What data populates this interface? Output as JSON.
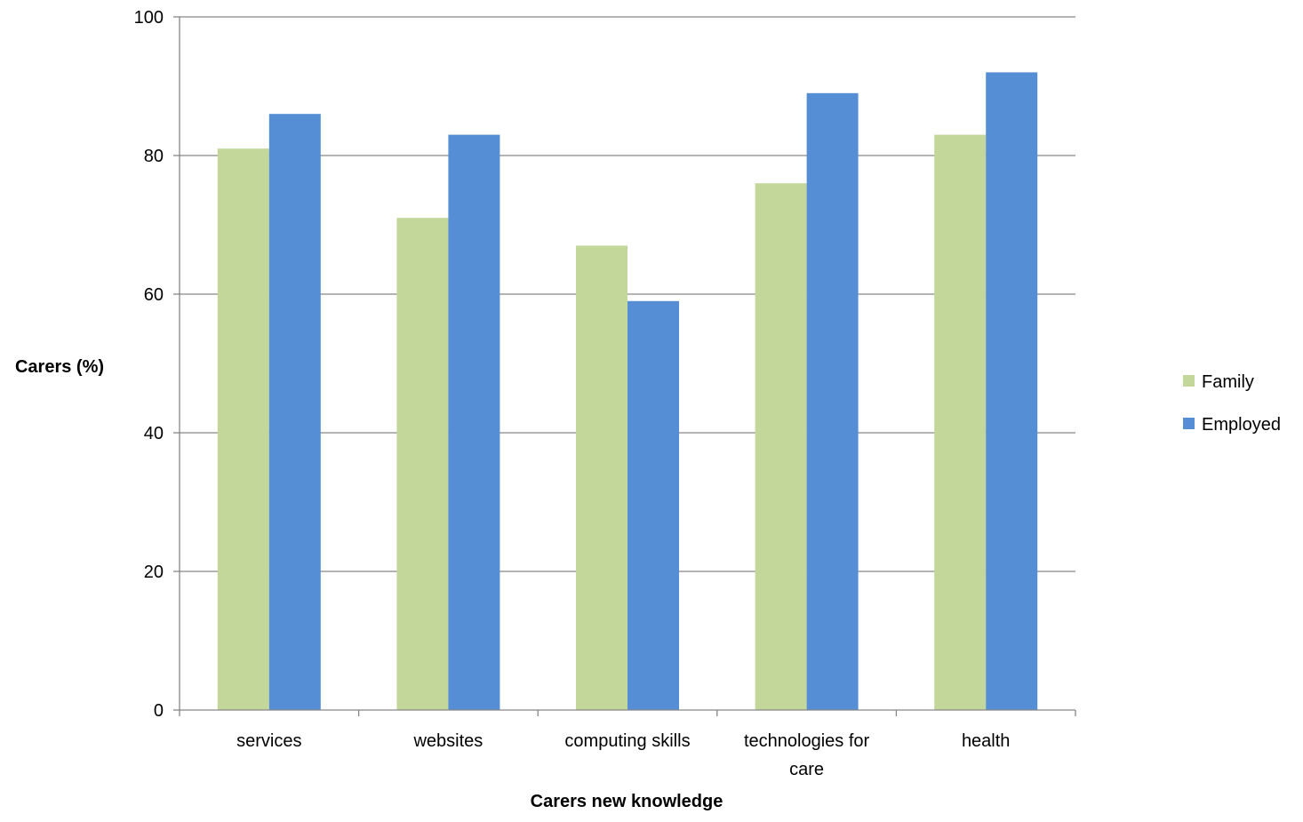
{
  "chart_data": {
    "type": "bar",
    "title": "",
    "xlabel": "Carers new knowledge",
    "ylabel": "Carers (%)",
    "categories": [
      "services",
      "websites",
      "computing skills",
      "technologies for care",
      "health"
    ],
    "series": [
      {
        "name": "Family",
        "values": [
          81,
          71,
          67,
          76,
          83
        ],
        "color": "#c4d79b"
      },
      {
        "name": "Employed",
        "values": [
          86,
          83,
          59,
          89,
          92
        ],
        "color": "#558ed5"
      }
    ],
    "ylim": [
      0,
      100
    ],
    "yticks": [
      0,
      20,
      40,
      60,
      80,
      100
    ],
    "grid": true,
    "legend_position": "right"
  }
}
